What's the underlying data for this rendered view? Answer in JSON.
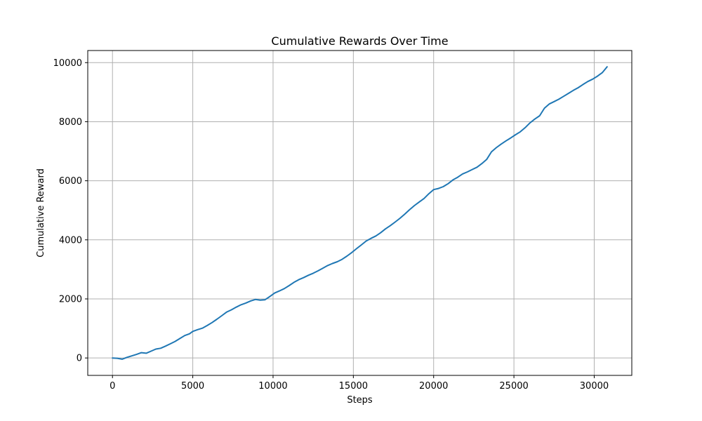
{
  "chart_data": {
    "type": "line",
    "title": "Cumulative Rewards Over Time",
    "xlabel": "Steps",
    "ylabel": "Cumulative Reward",
    "xlim": [
      -1540,
      32340
    ],
    "ylim": [
      -590,
      10410
    ],
    "xticks": [
      0,
      5000,
      10000,
      15000,
      20000,
      25000,
      30000
    ],
    "yticks": [
      0,
      2000,
      4000,
      6000,
      8000,
      10000
    ],
    "grid": true,
    "series": [
      {
        "color": "#1f77b4",
        "x": [
          0,
          300,
          600,
          900,
          1200,
          1500,
          1800,
          2100,
          2400,
          2700,
          3000,
          3300,
          3600,
          3900,
          4200,
          4500,
          4800,
          5000,
          5300,
          5600,
          5900,
          6200,
          6500,
          6800,
          7100,
          7400,
          7700,
          8000,
          8300,
          8600,
          8900,
          9200,
          9500,
          9800,
          10100,
          10400,
          10700,
          11000,
          11300,
          11600,
          11900,
          12200,
          12500,
          12800,
          13100,
          13400,
          13700,
          14000,
          14300,
          14600,
          14900,
          15200,
          15500,
          15800,
          16100,
          16400,
          16700,
          17000,
          17300,
          17600,
          17900,
          18200,
          18500,
          18800,
          19100,
          19400,
          19700,
          20000,
          20300,
          20600,
          20900,
          21200,
          21500,
          21800,
          22100,
          22400,
          22700,
          23000,
          23300,
          23600,
          23900,
          24200,
          24500,
          24800,
          25100,
          25400,
          25700,
          26000,
          26300,
          26600,
          26900,
          27200,
          27500,
          27800,
          28100,
          28400,
          28700,
          29000,
          29300,
          29600,
          29900,
          30200,
          30500,
          30800
        ],
        "y": [
          0,
          -10,
          -40,
          20,
          70,
          120,
          180,
          160,
          230,
          300,
          330,
          400,
          480,
          560,
          660,
          760,
          820,
          900,
          960,
          1010,
          1100,
          1200,
          1310,
          1430,
          1550,
          1630,
          1720,
          1800,
          1860,
          1930,
          1980,
          1960,
          1970,
          2080,
          2200,
          2270,
          2350,
          2450,
          2560,
          2650,
          2720,
          2800,
          2870,
          2950,
          3040,
          3130,
          3200,
          3260,
          3340,
          3450,
          3570,
          3700,
          3830,
          3960,
          4050,
          4130,
          4240,
          4370,
          4480,
          4600,
          4730,
          4870,
          5020,
          5160,
          5280,
          5400,
          5560,
          5700,
          5740,
          5800,
          5900,
          6030,
          6120,
          6230,
          6300,
          6380,
          6460,
          6580,
          6720,
          6980,
          7120,
          7240,
          7350,
          7450,
          7560,
          7660,
          7800,
          7960,
          8090,
          8200,
          8460,
          8600,
          8680,
          8760,
          8860,
          8960,
          9060,
          9150,
          9260,
          9360,
          9440,
          9540,
          9660,
          9860
        ]
      }
    ]
  }
}
